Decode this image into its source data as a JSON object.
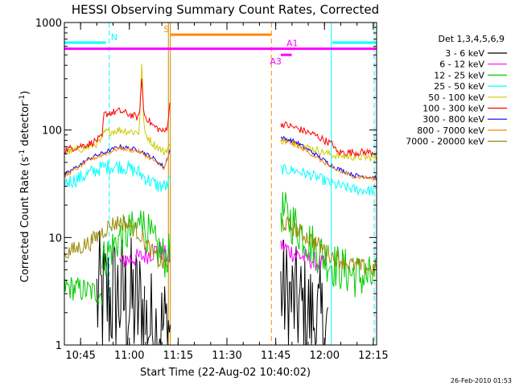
{
  "chart_data": {
    "type": "line",
    "title": "HESSI Observing Summary Count Rates, Corrected",
    "xlabel": "Start Time (22-Aug-02 10:40:02)",
    "ylabel_main": "Corrected Count Rate (s",
    "ylabel_sup1": "-1",
    "ylabel_mid": " detector",
    "ylabel_sup2": "-1",
    "ylabel_end": ")",
    "xlim": [
      10.667,
      12.267
    ],
    "ylim": [
      1,
      1000
    ],
    "yscale": "log",
    "x_ticks": [
      {
        "x": 10.75,
        "label": "10:45"
      },
      {
        "x": 11.0,
        "label": "11:00"
      },
      {
        "x": 11.25,
        "label": "11:15"
      },
      {
        "x": 11.5,
        "label": "11:30"
      },
      {
        "x": 11.75,
        "label": "11:45"
      },
      {
        "x": 12.0,
        "label": "12:00"
      },
      {
        "x": 12.25,
        "label": "12:15"
      }
    ],
    "y_ticks": [
      {
        "y": 1,
        "label": "1"
      },
      {
        "y": 10,
        "label": "10"
      },
      {
        "y": 100,
        "label": "100"
      },
      {
        "y": 1000,
        "label": "1000"
      }
    ],
    "legend_title": "Det 1,3,4,5,6,9",
    "legend_position": "right",
    "series": [
      {
        "name": "3 - 6 keV",
        "color": "#000000",
        "segments": [
          {
            "start": 10.833,
            "end": 11.078,
            "noise": 0.65,
            "base": [
              [
                10.833,
                2.6
              ],
              [
                10.95,
                2.8
              ],
              [
                11.0,
                2.5
              ],
              [
                11.078,
                2.0
              ]
            ]
          },
          {
            "start": 11.083,
            "end": 11.21,
            "noise": 0.55,
            "base": [
              [
                11.083,
                1.6
              ],
              [
                11.15,
                1.4
              ],
              [
                11.21,
                1.5
              ]
            ]
          },
          {
            "start": 11.776,
            "end": 12.017,
            "noise": 0.55,
            "base": [
              [
                11.776,
                3.2
              ],
              [
                11.85,
                2.4
              ],
              [
                11.95,
                1.7
              ],
              [
                12.017,
                1.4
              ]
            ]
          }
        ]
      },
      {
        "name": "6 - 12 keV",
        "color": "#ff00ff",
        "segments": [
          {
            "start": 10.95,
            "end": 11.207,
            "noise": 0.09,
            "base": [
              [
                10.95,
                6.0
              ],
              [
                11.0,
                6.3
              ],
              [
                11.05,
                6.5
              ],
              [
                11.1,
                7.0
              ],
              [
                11.15,
                7.8
              ],
              [
                11.2,
                6.5
              ]
            ]
          },
          {
            "start": 11.776,
            "end": 12.01,
            "noise": 0.09,
            "base": [
              [
                11.776,
                8.5
              ],
              [
                11.85,
                7.0
              ],
              [
                11.95,
                6.0
              ],
              [
                12.0,
                5.5
              ]
            ]
          }
        ]
      },
      {
        "name": "12 - 25 keV",
        "color": "#00cc00",
        "segments": [
          {
            "start": 10.667,
            "end": 10.86,
            "noise": 0.12,
            "base": [
              [
                10.667,
                3.5
              ],
              [
                10.86,
                3.0
              ]
            ]
          },
          {
            "start": 10.86,
            "end": 11.207,
            "noise": 0.2,
            "base": [
              [
                10.86,
                6.0
              ],
              [
                10.95,
                10.0
              ],
              [
                11.02,
                11.5
              ],
              [
                11.05,
                12.5
              ],
              [
                11.06,
                25.0
              ],
              [
                11.07,
                13.0
              ],
              [
                11.12,
                9.0
              ],
              [
                11.18,
                6.5
              ],
              [
                11.207,
                7.0
              ]
            ]
          },
          {
            "start": 11.776,
            "end": 12.27,
            "noise": 0.22,
            "base": [
              [
                11.776,
                18.0
              ],
              [
                11.85,
                13.0
              ],
              [
                11.95,
                8.0
              ],
              [
                12.05,
                5.5
              ],
              [
                12.15,
                4.5
              ],
              [
                12.27,
                4.0
              ]
            ]
          }
        ]
      },
      {
        "name": "25 - 50 keV",
        "color": "#00ffff",
        "segments": [
          {
            "start": 10.667,
            "end": 11.207,
            "noise": 0.07,
            "base": [
              [
                10.667,
                32.0
              ],
              [
                10.75,
                36.0
              ],
              [
                10.86,
                45.0
              ],
              [
                10.95,
                46.0
              ],
              [
                11.0,
                44.0
              ],
              [
                11.05,
                40.0
              ],
              [
                11.1,
                34.0
              ],
              [
                11.15,
                30.0
              ],
              [
                11.195,
                30.0
              ],
              [
                11.207,
                34.0
              ]
            ]
          },
          {
            "start": 11.776,
            "end": 12.27,
            "noise": 0.05,
            "base": [
              [
                11.776,
                43.0
              ],
              [
                11.85,
                42.0
              ],
              [
                11.95,
                37.0
              ],
              [
                12.05,
                31.0
              ],
              [
                12.15,
                28.0
              ],
              [
                12.27,
                27.0
              ]
            ]
          }
        ]
      },
      {
        "name": "50 - 100 keV",
        "color": "#cccc00",
        "segments": [
          {
            "start": 10.667,
            "end": 11.207,
            "noise": 0.04,
            "base": [
              [
                10.667,
                62.0
              ],
              [
                10.8,
                70.0
              ],
              [
                10.86,
                80.0
              ],
              [
                10.87,
                95.0
              ],
              [
                10.95,
                100.0
              ],
              [
                11.05,
                95.0
              ],
              [
                11.065,
                460.0
              ],
              [
                11.075,
                95.0
              ],
              [
                11.12,
                75.0
              ],
              [
                11.18,
                62.0
              ],
              [
                11.2,
                70.0
              ]
            ]
          },
          {
            "start": 11.776,
            "end": 12.27,
            "noise": 0.035,
            "base": [
              [
                11.776,
                80.0
              ],
              [
                11.85,
                75.0
              ],
              [
                11.95,
                66.0
              ],
              [
                12.05,
                58.0
              ],
              [
                12.15,
                56.0
              ],
              [
                12.27,
                55.0
              ]
            ]
          }
        ]
      },
      {
        "name": "100 - 300 keV",
        "color": "#ff0000",
        "segments": [
          {
            "start": 10.667,
            "end": 11.207,
            "noise": 0.035,
            "base": [
              [
                10.667,
                65.0
              ],
              [
                10.8,
                75.0
              ],
              [
                10.86,
                85.0
              ],
              [
                10.87,
                140.0
              ],
              [
                10.95,
                150.0
              ],
              [
                11.05,
                130.0
              ],
              [
                11.063,
                300.0
              ],
              [
                11.075,
                140.0
              ],
              [
                11.12,
                110.0
              ],
              [
                11.18,
                95.0
              ],
              [
                11.195,
                110.0
              ],
              [
                11.207,
                170.0
              ]
            ]
          },
          {
            "start": 11.776,
            "end": 12.27,
            "noise": 0.035,
            "base": [
              [
                11.776,
                115.0
              ],
              [
                11.85,
                105.0
              ],
              [
                11.95,
                90.0
              ],
              [
                12.05,
                72.0
              ],
              [
                12.06,
                62.0
              ],
              [
                12.15,
                62.0
              ],
              [
                12.27,
                62.0
              ]
            ]
          }
        ]
      },
      {
        "name": "300 - 800 keV",
        "color": "#0000ff",
        "segments": [
          {
            "start": 10.667,
            "end": 11.207,
            "noise": 0.02,
            "base": [
              [
                10.667,
                38.0
              ],
              [
                10.8,
                55.0
              ],
              [
                10.95,
                70.0
              ],
              [
                11.05,
                65.0
              ],
              [
                11.12,
                55.0
              ],
              [
                11.18,
                45.0
              ],
              [
                11.207,
                65.0
              ]
            ]
          },
          {
            "start": 11.776,
            "end": 12.27,
            "noise": 0.02,
            "base": [
              [
                11.776,
                85.0
              ],
              [
                11.85,
                78.0
              ],
              [
                11.95,
                60.0
              ],
              [
                12.05,
                45.0
              ],
              [
                12.15,
                38.0
              ],
              [
                12.27,
                36.0
              ]
            ]
          }
        ]
      },
      {
        "name": "800 - 7000 keV",
        "color": "#ff8800",
        "segments": [
          {
            "start": 10.667,
            "end": 11.207,
            "noise": 0.02,
            "base": [
              [
                10.667,
                37.0
              ],
              [
                10.8,
                53.0
              ],
              [
                10.95,
                68.0
              ],
              [
                11.05,
                63.0
              ],
              [
                11.12,
                53.0
              ],
              [
                11.18,
                44.0
              ],
              [
                11.207,
                62.0
              ]
            ]
          },
          {
            "start": 11.776,
            "end": 12.27,
            "noise": 0.02,
            "base": [
              [
                11.776,
                80.0
              ],
              [
                11.85,
                74.0
              ],
              [
                11.95,
                57.0
              ],
              [
                12.05,
                43.0
              ],
              [
                12.15,
                37.0
              ],
              [
                12.27,
                35.0
              ]
            ]
          }
        ]
      },
      {
        "name": "7000 - 20000 keV",
        "color": "#998800",
        "segments": [
          {
            "start": 10.667,
            "end": 11.207,
            "noise": 0.08,
            "base": [
              [
                10.667,
                7.0
              ],
              [
                10.8,
                9.0
              ],
              [
                10.9,
                13.0
              ],
              [
                10.95,
                14.0
              ],
              [
                11.0,
                13.0
              ],
              [
                11.05,
                11.0
              ],
              [
                11.1,
                8.0
              ],
              [
                11.15,
                6.0
              ],
              [
                11.207,
                5.5
              ]
            ]
          },
          {
            "start": 11.776,
            "end": 12.27,
            "noise": 0.08,
            "base": [
              [
                11.776,
                14.0
              ],
              [
                11.85,
                12.0
              ],
              [
                11.95,
                9.0
              ],
              [
                12.05,
                6.5
              ],
              [
                12.15,
                5.5
              ],
              [
                12.27,
                5.0
              ]
            ]
          }
        ]
      }
    ],
    "annotations": {
      "vertical_lines": [
        {
          "x": 10.667,
          "color": "#00ffff",
          "style": "solid"
        },
        {
          "x": 10.897,
          "color": "#00ffff",
          "style": "dashed"
        },
        {
          "x": 11.2,
          "color": "#cc8800",
          "style": "solid"
        },
        {
          "x": 11.21,
          "color": "#cc8800",
          "style": "solid"
        },
        {
          "x": 11.728,
          "color": "#ff8800",
          "style": "dashed"
        },
        {
          "x": 12.035,
          "color": "#00ffff",
          "style": "solid"
        },
        {
          "x": 12.255,
          "color": "#00ffff",
          "style": "dashed"
        }
      ],
      "horizontal_bars": [
        {
          "label": "N",
          "x0": 10.667,
          "x1": 10.88,
          "y": 650,
          "color": "#00ffff",
          "label_x": 10.922
        },
        {
          "label": "",
          "x0": 12.04,
          "x1": 12.267,
          "y": 650,
          "color": "#00ffff",
          "label_x": 12.04
        },
        {
          "label": "S",
          "x0": 11.21,
          "x1": 11.728,
          "y": 770,
          "color": "#ff8800",
          "label_x": 11.19
        },
        {
          "label": "A1",
          "x0": 10.667,
          "x1": 12.267,
          "y": 570,
          "color": "#ff00ff",
          "label_x": 11.835
        },
        {
          "label": "A3",
          "x0": 11.776,
          "x1": 11.832,
          "y": 500,
          "color": "#ff00ff",
          "label_x": 11.75
        }
      ]
    }
  },
  "footer": {
    "timestamp": "26-Feb-2010 01:53"
  }
}
